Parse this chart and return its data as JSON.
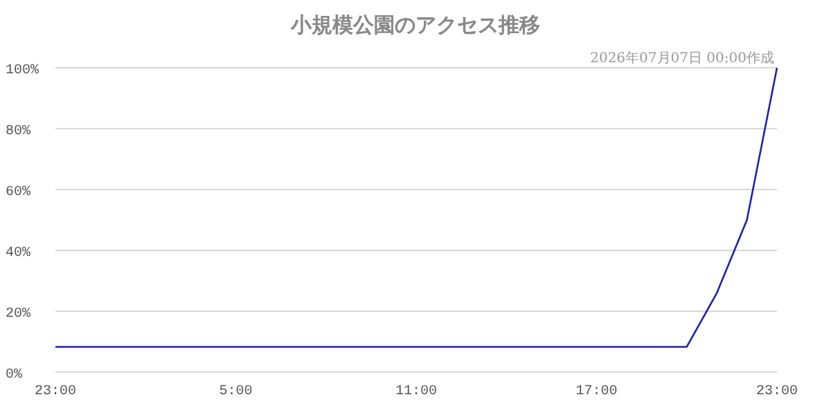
{
  "chart_data": {
    "type": "line",
    "title": "小規模公園のアクセス推移",
    "subtitle": "2026年07月07日 00:00作成",
    "categories": [
      "23:00",
      null,
      null,
      null,
      null,
      null,
      "5:00",
      null,
      null,
      null,
      null,
      null,
      "11:00",
      null,
      null,
      null,
      null,
      null,
      "17:00",
      null,
      null,
      null,
      null,
      null,
      "23:00"
    ],
    "series": [
      {
        "color": "#2020b0",
        "values": [
          8.3,
          8.3,
          8.3,
          8.3,
          8.3,
          8.3,
          8.3,
          8.3,
          8.3,
          8.3,
          8.3,
          8.3,
          8.3,
          8.3,
          8.3,
          8.3,
          8.3,
          8.3,
          8.3,
          8.3,
          8.3,
          8.3,
          26,
          50,
          100
        ]
      }
    ],
    "ylim": [
      0,
      100
    ],
    "yticks": [
      {
        "value": 0,
        "label": "0%"
      },
      {
        "value": 20,
        "label": "20%"
      },
      {
        "value": 40,
        "label": "40%"
      },
      {
        "value": 60,
        "label": "60%"
      },
      {
        "value": 80,
        "label": "80%"
      },
      {
        "value": 100,
        "label": "100%"
      }
    ],
    "grid": "y",
    "marker": "none"
  }
}
